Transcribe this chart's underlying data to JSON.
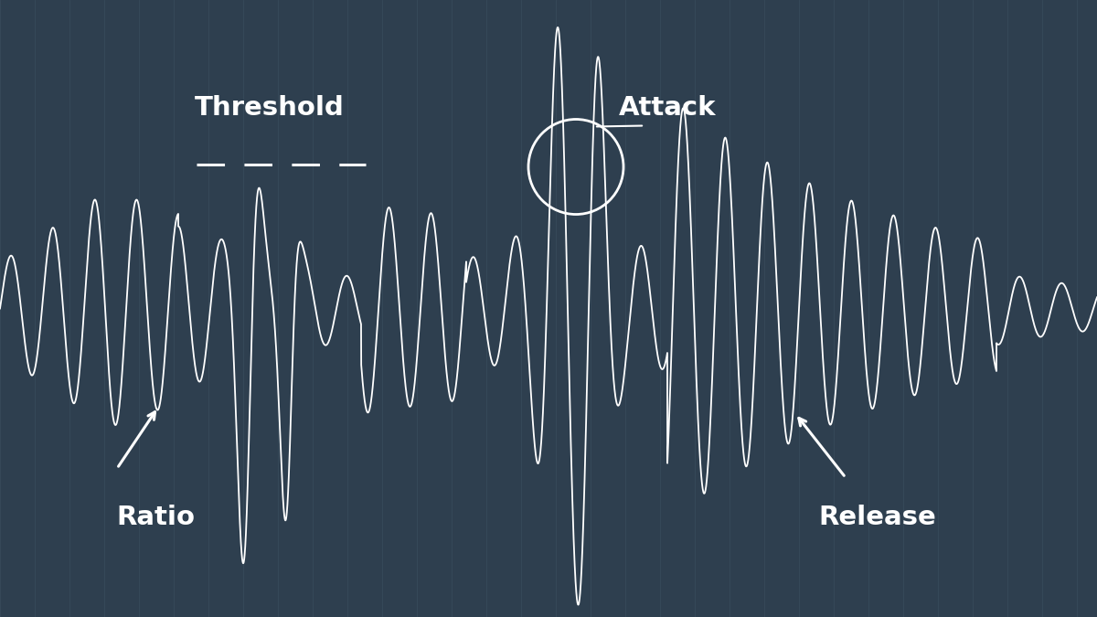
{
  "background_color": "#2e3f4f",
  "grid_line_color": "#3d5060",
  "wave_color": "#ffffff",
  "label_color": "#ffffff",
  "threshold_line_color": "#ffffff",
  "labels": {
    "threshold": "Threshold",
    "attack": "Attack",
    "ratio": "Ratio",
    "release": "Release"
  },
  "figsize": [
    12,
    6.75
  ],
  "dpi": 100
}
